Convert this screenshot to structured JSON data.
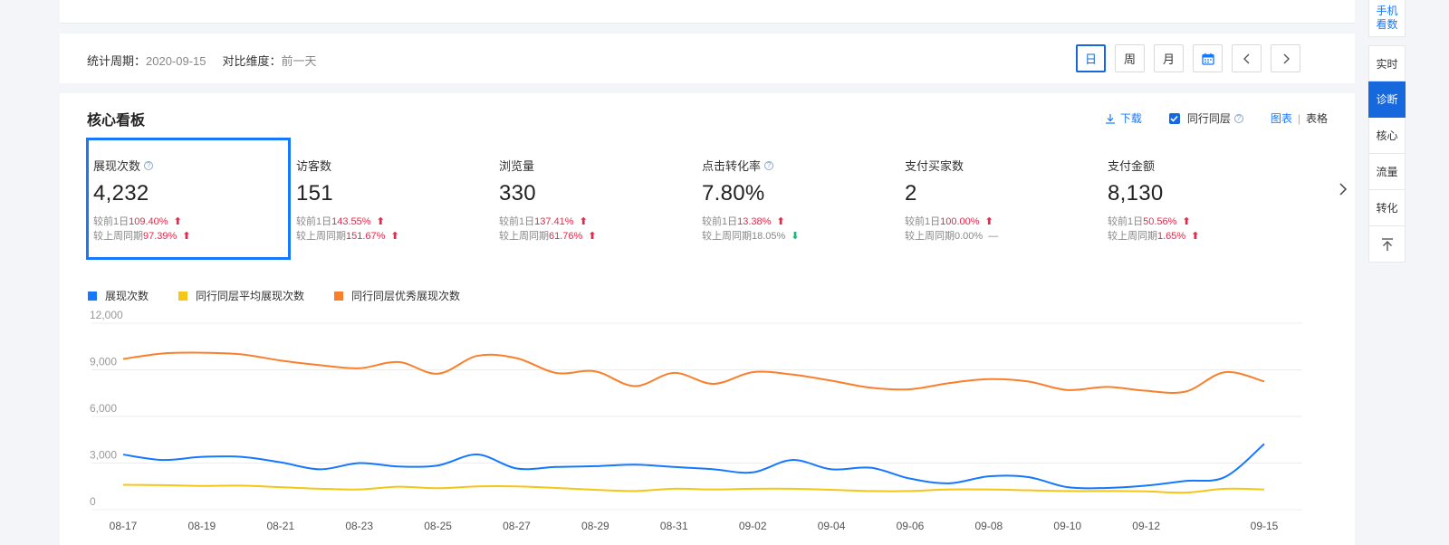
{
  "period_bar": {
    "stat_period_label": "统计周期：",
    "stat_period_value": "2020-09-15",
    "compare_label": "对比维度：",
    "compare_value": "前一天",
    "buttons": {
      "day": "日",
      "week": "周",
      "month": "月"
    }
  },
  "core_board": {
    "title": "核心看板",
    "download_label": "下载",
    "peer_label": "同行同层",
    "view_chart": "图表",
    "view_sep": "|",
    "view_table": "表格"
  },
  "metrics": [
    {
      "label": "展现次数",
      "help": true,
      "value": "4,232",
      "cmp1_label": "较前1日",
      "cmp1_value": "109.40%",
      "cmp1_trend": "up",
      "cmp2_label": "较上周同期",
      "cmp2_value": "97.39%",
      "cmp2_trend": "up"
    },
    {
      "label": "访客数",
      "help": false,
      "value": "151",
      "cmp1_label": "较前1日",
      "cmp1_value": "143.55%",
      "cmp1_trend": "up",
      "cmp2_label": "较上周同期",
      "cmp2_value": "151.67%",
      "cmp2_trend": "up"
    },
    {
      "label": "浏览量",
      "help": false,
      "value": "330",
      "cmp1_label": "较前1日",
      "cmp1_value": "137.41%",
      "cmp1_trend": "up",
      "cmp2_label": "较上周同期",
      "cmp2_value": "61.76%",
      "cmp2_trend": "up"
    },
    {
      "label": "点击转化率",
      "help": true,
      "value": "7.80%",
      "cmp1_label": "较前1日",
      "cmp1_value": "13.38%",
      "cmp1_trend": "up",
      "cmp2_label": "较上周同期",
      "cmp2_value": "18.05%",
      "cmp2_trend": "down"
    },
    {
      "label": "支付买家数",
      "help": false,
      "value": "2",
      "cmp1_label": "较前1日",
      "cmp1_value": "100.00%",
      "cmp1_trend": "up",
      "cmp2_label": "较上周同期",
      "cmp2_value": "0.00%",
      "cmp2_trend": "flat"
    },
    {
      "label": "支付金额",
      "help": false,
      "value": "8,130",
      "cmp1_label": "较前1日",
      "cmp1_value": "50.56%",
      "cmp1_trend": "up",
      "cmp2_label": "较上周同期",
      "cmp2_value": "1.65%",
      "cmp2_trend": "up"
    }
  ],
  "side_nav": {
    "phone": [
      "手机",
      "看数"
    ],
    "items": [
      "实时",
      "诊断",
      "核心",
      "流量",
      "转化"
    ],
    "active": "诊断",
    "top_icon": "back-to-top-icon"
  },
  "icons": {
    "download": "download-icon",
    "checkbox": "checkbox-checked-icon",
    "help": "help-circle-icon",
    "calendar": "calendar-icon",
    "prev": "chevron-left-icon",
    "next": "chevron-right-icon",
    "up": "arrow-up-icon",
    "down": "arrow-down-icon"
  },
  "colors": {
    "accent": "#1677ff",
    "up": "#e6284a",
    "down": "#17b87a",
    "series": [
      "#1677ff",
      "#f5c518",
      "#fa7f2c"
    ]
  },
  "chart_data": {
    "type": "line",
    "x": [
      "08-17",
      "08-18",
      "08-19",
      "08-20",
      "08-21",
      "08-22",
      "08-23",
      "08-24",
      "08-25",
      "08-26",
      "08-27",
      "08-28",
      "08-29",
      "08-30",
      "08-31",
      "09-01",
      "09-02",
      "09-03",
      "09-04",
      "09-05",
      "09-06",
      "09-07",
      "09-08",
      "09-09",
      "09-10",
      "09-11",
      "09-12",
      "09-13",
      "09-14",
      "09-15"
    ],
    "x_tick_labels": [
      "08-17",
      "08-19",
      "08-21",
      "08-23",
      "08-25",
      "08-27",
      "08-29",
      "08-31",
      "09-02",
      "09-04",
      "09-06",
      "09-08",
      "09-10",
      "09-12",
      "09-15"
    ],
    "ylim": [
      0,
      12000
    ],
    "y_ticks": [
      "12,000",
      "9,000",
      "6,000",
      "3,000",
      "0"
    ],
    "y_tick_values": [
      12000,
      9000,
      6000,
      3000,
      0
    ],
    "grid": true,
    "legend_position": "top-left",
    "series": [
      {
        "name": "展现次数",
        "values": [
          3550,
          3200,
          3400,
          3400,
          3050,
          2600,
          3000,
          2780,
          2850,
          3550,
          2650,
          2750,
          2800,
          2900,
          2750,
          2600,
          2400,
          3200,
          2600,
          2700,
          2000,
          1700,
          2150,
          2100,
          1450,
          1400,
          1550,
          1850,
          2100,
          4232
        ]
      },
      {
        "name": "同行同层平均展现次数",
        "values": [
          1600,
          1580,
          1530,
          1550,
          1450,
          1350,
          1300,
          1480,
          1380,
          1500,
          1500,
          1400,
          1280,
          1200,
          1350,
          1300,
          1350,
          1350,
          1280,
          1200,
          1200,
          1300,
          1300,
          1250,
          1200,
          1200,
          1180,
          1100,
          1350,
          1300
        ]
      },
      {
        "name": "同行同层优秀展现次数",
        "values": [
          9700,
          10050,
          10100,
          10000,
          9600,
          9300,
          9100,
          9500,
          8750,
          9900,
          9750,
          8800,
          8900,
          7950,
          8800,
          8100,
          8850,
          8700,
          8300,
          7850,
          7750,
          8150,
          8400,
          8250,
          7700,
          7900,
          7650,
          7600,
          8850,
          8250
        ]
      }
    ]
  }
}
